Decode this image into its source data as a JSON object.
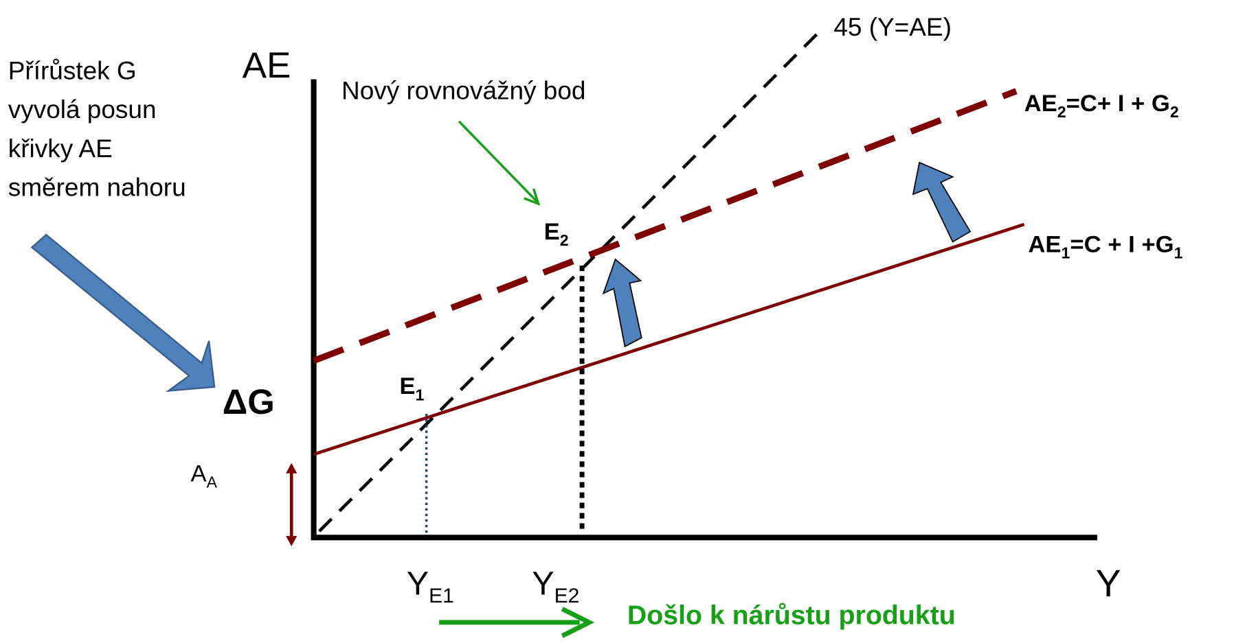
{
  "annotation": {
    "lines": [
      "Přírůstek G",
      "vyvolá posun",
      "křivky AE",
      "směrem nahoru"
    ]
  },
  "axis": {
    "y": "AE",
    "x": "Y"
  },
  "new_point_label": "Nový rovnovážný bod",
  "line45": "45  (Y=AE)",
  "ae2": [
    "AE",
    "2",
    "=C+ I + G",
    "2"
  ],
  "ae1": [
    "AE",
    "1",
    "=C + I +G",
    "1"
  ],
  "e2": [
    "E",
    "2"
  ],
  "e1": [
    "E",
    "1"
  ],
  "delta_g": "ΔG",
  "aa": [
    "A",
    "A"
  ],
  "ye1": [
    "Y",
    "E1"
  ],
  "ye2": [
    "Y",
    "E2"
  ],
  "result": "Došlo k nárůstu produktu"
}
